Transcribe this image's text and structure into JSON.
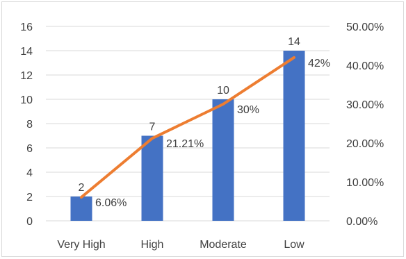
{
  "chart_data": {
    "type": "bar",
    "categories": [
      "Very High",
      "High",
      "Moderate",
      "Low"
    ],
    "series": [
      {
        "type": "bar",
        "axis": "left",
        "values": [
          2,
          7,
          10,
          14
        ],
        "labels": [
          "2",
          "7",
          "10",
          "14"
        ],
        "color": "#4472c4"
      },
      {
        "type": "line",
        "axis": "right",
        "values": [
          6.06,
          21.21,
          30,
          42
        ],
        "labels": [
          "6.06%",
          "21.21%",
          "30%",
          "42%"
        ],
        "color": "#ed7d31"
      }
    ],
    "ylim": [
      0,
      16
    ],
    "yticks": [
      "0",
      "2",
      "4",
      "6",
      "8",
      "10",
      "12",
      "14",
      "16"
    ],
    "y2lim": [
      0,
      50
    ],
    "y2ticks": [
      "0.00%",
      "10.00%",
      "20.00%",
      "30.00%",
      "40.00%",
      "50.00%"
    ],
    "grid": true,
    "legend": "none"
  }
}
